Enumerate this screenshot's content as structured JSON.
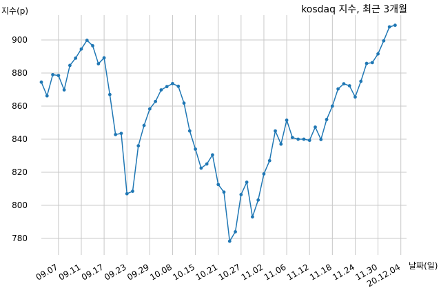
{
  "chart_data": {
    "type": "line",
    "title": "kosdaq 지수, 최근 3개월",
    "xlabel": "날짜(일)",
    "ylabel": "지수(p)",
    "ylim": [
      770,
      915
    ],
    "xlim": [
      0,
      64
    ],
    "grid": true,
    "line_color": "#1f77b4",
    "x_ticks": [
      {
        "i": 3,
        "label": "09.07"
      },
      {
        "i": 7,
        "label": "09.11"
      },
      {
        "i": 11,
        "label": "09.17"
      },
      {
        "i": 15,
        "label": "09.23"
      },
      {
        "i": 19,
        "label": "09.29"
      },
      {
        "i": 23,
        "label": "10.08"
      },
      {
        "i": 27,
        "label": "10.15"
      },
      {
        "i": 31,
        "label": "10.21"
      },
      {
        "i": 35,
        "label": "10.27"
      },
      {
        "i": 39,
        "label": "11.02"
      },
      {
        "i": 43,
        "label": "11.06"
      },
      {
        "i": 47,
        "label": "11.12"
      },
      {
        "i": 51,
        "label": "11.18"
      },
      {
        "i": 55,
        "label": "11.24"
      },
      {
        "i": 59,
        "label": "11.30"
      },
      {
        "i": 63,
        "label": "20.12.04"
      }
    ],
    "y_ticks": [
      780,
      800,
      820,
      840,
      860,
      880,
      900
    ],
    "series": [
      {
        "values": [
          874.5,
          866.2,
          879.0,
          878.5,
          869.8,
          884.6,
          889.0,
          894.5,
          899.8,
          896.5,
          885.6,
          889.2,
          867.0,
          842.8,
          843.5,
          807.0,
          808.5,
          836.0,
          848.3,
          858.3,
          862.8,
          869.8,
          871.8,
          873.6,
          872.0,
          861.8,
          845.0,
          834.0,
          822.5,
          825.0,
          830.5,
          812.6,
          808.0,
          778.3,
          784.0,
          806.5,
          814.0,
          793.0,
          803.2,
          819.0,
          827.0,
          845.0,
          837.0,
          851.5,
          841.0,
          840.0,
          840.0,
          839.3,
          847.3,
          839.8,
          851.9,
          860.0,
          870.4,
          873.5,
          872.3,
          865.5,
          875.0,
          885.8,
          886.3,
          891.6,
          899.5,
          907.9,
          908.9
        ]
      }
    ]
  }
}
